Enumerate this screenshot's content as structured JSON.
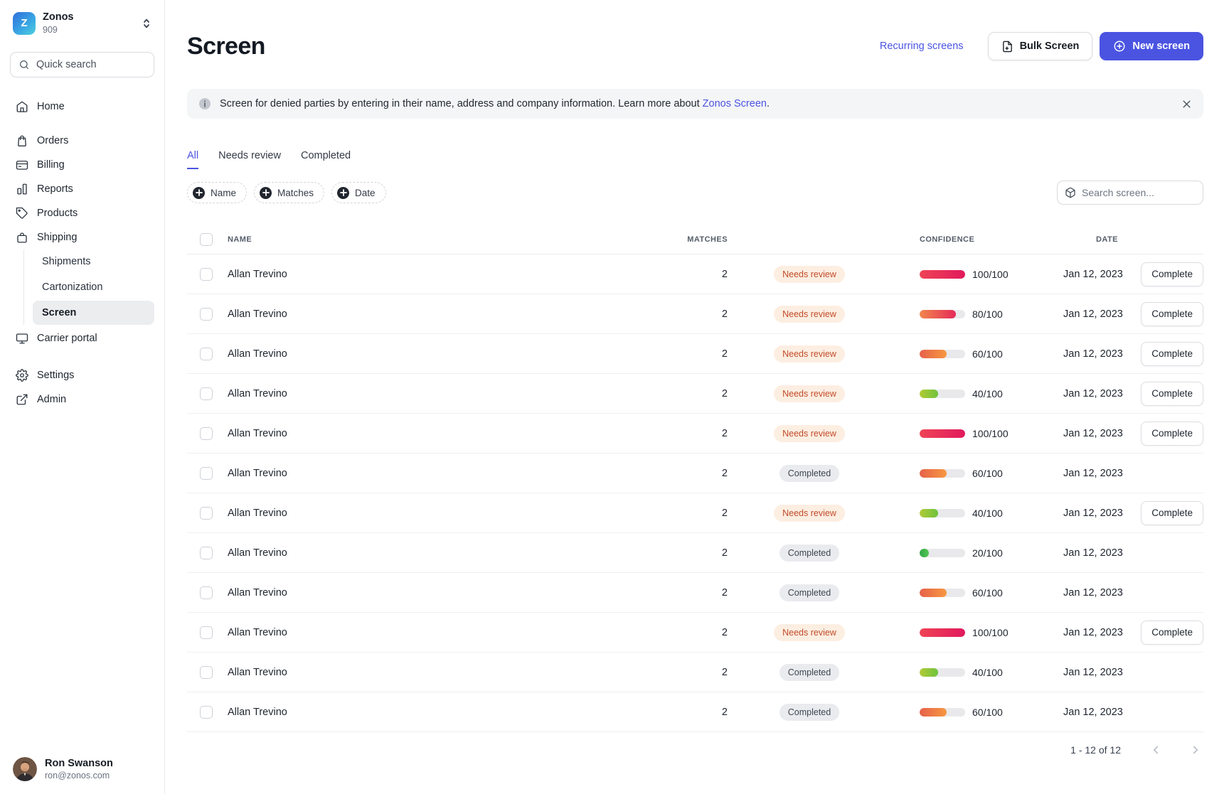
{
  "brand": {
    "logo_letter": "Z",
    "name": "Zonos",
    "org_id": "909"
  },
  "sidebar": {
    "quick_search_placeholder": "Quick search",
    "items": [
      {
        "label": "Home"
      },
      {
        "label": "Orders"
      },
      {
        "label": "Billing"
      },
      {
        "label": "Reports"
      },
      {
        "label": "Products"
      },
      {
        "label": "Shipping"
      },
      {
        "label": "Carrier portal"
      },
      {
        "label": "Settings"
      },
      {
        "label": "Admin"
      }
    ],
    "shipping_sub": [
      {
        "label": "Shipments",
        "active": false
      },
      {
        "label": "Cartonization",
        "active": false
      },
      {
        "label": "Screen",
        "active": true
      }
    ],
    "user": {
      "name": "Ron Swanson",
      "email": "ron@zonos.com"
    }
  },
  "header": {
    "title": "Screen",
    "recurring_link": "Recurring screens",
    "bulk_button": "Bulk Screen",
    "new_button": "New screen"
  },
  "banner": {
    "prefix": "Screen for denied parties by entering in their name, address and company information. Learn more about ",
    "link": "Zonos Screen",
    "suffix": "."
  },
  "tabs": [
    {
      "label": "All",
      "active": true
    },
    {
      "label": "Needs review",
      "active": false
    },
    {
      "label": "Completed",
      "active": false
    }
  ],
  "filters": [
    {
      "label": "Name"
    },
    {
      "label": "Matches"
    },
    {
      "label": "Date"
    }
  ],
  "search": {
    "placeholder": "Search screen..."
  },
  "table": {
    "headers": {
      "name": "NAME",
      "matches": "MATCHES",
      "confidence": "CONFIDENCE",
      "date": "DATE"
    },
    "rows": [
      {
        "name": "Allan Trevino",
        "matches": "2",
        "status": "Needs review",
        "type": "needs_review",
        "confidence": 100,
        "confidence_label": "100/100",
        "date": "Jan 12, 2023",
        "action": "Complete"
      },
      {
        "name": "Allan Trevino",
        "matches": "2",
        "status": "Needs review",
        "type": "needs_review",
        "confidence": 80,
        "confidence_label": "80/100",
        "date": "Jan 12, 2023",
        "action": "Complete"
      },
      {
        "name": "Allan Trevino",
        "matches": "2",
        "status": "Needs review",
        "type": "needs_review",
        "confidence": 60,
        "confidence_label": "60/100",
        "date": "Jan 12, 2023",
        "action": "Complete"
      },
      {
        "name": "Allan Trevino",
        "matches": "2",
        "status": "Needs review",
        "type": "needs_review",
        "confidence": 40,
        "confidence_label": "40/100",
        "date": "Jan 12, 2023",
        "action": "Complete"
      },
      {
        "name": "Allan Trevino",
        "matches": "2",
        "status": "Needs review",
        "type": "needs_review",
        "confidence": 100,
        "confidence_label": "100/100",
        "date": "Jan 12, 2023",
        "action": "Complete"
      },
      {
        "name": "Allan Trevino",
        "matches": "2",
        "status": "Completed",
        "type": "completed",
        "confidence": 60,
        "confidence_label": "60/100",
        "date": "Jan 12, 2023",
        "action": null
      },
      {
        "name": "Allan Trevino",
        "matches": "2",
        "status": "Needs review",
        "type": "needs_review",
        "confidence": 40,
        "confidence_label": "40/100",
        "date": "Jan 12, 2023",
        "action": "Complete"
      },
      {
        "name": "Allan Trevino",
        "matches": "2",
        "status": "Completed",
        "type": "completed",
        "confidence": 20,
        "confidence_label": "20/100",
        "date": "Jan 12, 2023",
        "action": null
      },
      {
        "name": "Allan Trevino",
        "matches": "2",
        "status": "Completed",
        "type": "completed",
        "confidence": 60,
        "confidence_label": "60/100",
        "date": "Jan 12, 2023",
        "action": null
      },
      {
        "name": "Allan Trevino",
        "matches": "2",
        "status": "Needs review",
        "type": "needs_review",
        "confidence": 100,
        "confidence_label": "100/100",
        "date": "Jan 12, 2023",
        "action": "Complete"
      },
      {
        "name": "Allan Trevino",
        "matches": "2",
        "status": "Completed",
        "type": "completed",
        "confidence": 40,
        "confidence_label": "40/100",
        "date": "Jan 12, 2023",
        "action": null
      },
      {
        "name": "Allan Trevino",
        "matches": "2",
        "status": "Completed",
        "type": "completed",
        "confidence": 60,
        "confidence_label": "60/100",
        "date": "Jan 12, 2023",
        "action": null
      }
    ]
  },
  "pagination": {
    "range": "1 - 12 of 12"
  },
  "colors": {
    "accent": "#4a54e1",
    "needs_review_bg": "#fdeee2",
    "needs_review_text": "#c14b27",
    "completed_bg": "#e9ebee",
    "completed_text": "#3e4552",
    "bar_track": "#e9e9ec",
    "bar_gradients": {
      "100": [
        "#ef4456",
        "#e1195c"
      ],
      "80": [
        "#f1874c",
        "#e52a58"
      ],
      "60": [
        "#e6614b",
        "#f79841"
      ],
      "40": [
        "#b2ca36",
        "#6ec33d"
      ],
      "20": [
        "#2ea845",
        "#55c654"
      ]
    }
  }
}
